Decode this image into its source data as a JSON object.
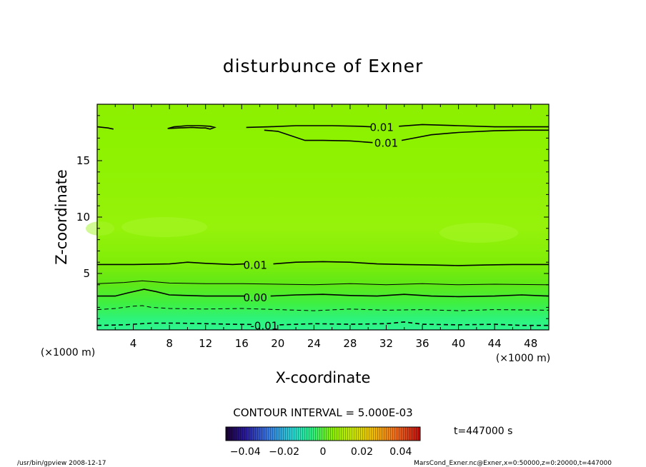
{
  "chart_data": {
    "type": "contour",
    "title": "disturbunce of Exner",
    "xlabel": "X-coordinate",
    "ylabel": "Z-coordinate",
    "x_unit": "(×1000 m)",
    "y_unit": "(×1000 m)",
    "xlim": [
      0,
      50
    ],
    "ylim": [
      0,
      20
    ],
    "xticks": [
      4,
      8,
      12,
      16,
      20,
      24,
      28,
      32,
      36,
      40,
      44,
      48
    ],
    "yticks": [
      5,
      10,
      15
    ],
    "contour_interval_text": "CONTOUR INTERVAL = 5.000E-03",
    "contour_labels": [
      {
        "text": "0.01",
        "x": 31.5,
        "y": 18.0
      },
      {
        "text": "0.01",
        "x": 32.0,
        "y": 16.6
      },
      {
        "text": "0.01",
        "x": 17.5,
        "y": 5.8
      },
      {
        "text": "0.00",
        "x": 17.5,
        "y": 2.9
      },
      {
        "text": "-0.01",
        "x": 18.5,
        "y": 0.4
      }
    ],
    "contours": [
      {
        "level": 0.01,
        "style": "solid",
        "points": [
          [
            0,
            18.0
          ],
          [
            1.2,
            17.9
          ],
          [
            1.8,
            17.8
          ]
        ]
      },
      {
        "level": 0.01,
        "style": "solid",
        "points": [
          [
            7.8,
            17.85
          ],
          [
            9,
            17.9
          ],
          [
            10.5,
            17.95
          ],
          [
            11.5,
            17.9
          ],
          [
            12,
            17.9
          ],
          [
            12.5,
            17.8
          ],
          [
            13,
            17.95
          ],
          [
            12.5,
            18.05
          ],
          [
            11.3,
            18.1
          ],
          [
            10,
            18.1
          ],
          [
            8.5,
            18.0
          ],
          [
            7.8,
            17.85
          ]
        ]
      },
      {
        "level": 0.01,
        "style": "solid",
        "points": [
          [
            16.5,
            17.95
          ],
          [
            19,
            18.0
          ],
          [
            22,
            18.1
          ],
          [
            26,
            18.1
          ],
          [
            29,
            18.05
          ],
          [
            30.3,
            18.0
          ]
        ]
      },
      {
        "level": 0.01,
        "style": "solid",
        "points": [
          [
            33.4,
            18.05
          ],
          [
            36,
            18.2
          ],
          [
            40,
            18.1
          ],
          [
            44,
            18.0
          ],
          [
            47,
            18.0
          ],
          [
            50,
            18.0
          ]
        ]
      },
      {
        "level": 0.01,
        "style": "solid",
        "points": [
          [
            18.5,
            17.7
          ],
          [
            20,
            17.6
          ],
          [
            21.5,
            17.2
          ],
          [
            23,
            16.8
          ],
          [
            25,
            16.8
          ],
          [
            28,
            16.75
          ],
          [
            30.5,
            16.6
          ]
        ]
      },
      {
        "level": 0.01,
        "style": "solid",
        "points": [
          [
            33.7,
            16.8
          ],
          [
            37,
            17.3
          ],
          [
            40,
            17.5
          ],
          [
            44,
            17.65
          ],
          [
            47,
            17.7
          ],
          [
            50,
            17.7
          ]
        ]
      },
      {
        "level": 0.01,
        "style": "solid",
        "points": [
          [
            0,
            5.8
          ],
          [
            4,
            5.8
          ],
          [
            8,
            5.85
          ],
          [
            10,
            6.0
          ],
          [
            12,
            5.9
          ],
          [
            15,
            5.8
          ],
          [
            16.3,
            5.85
          ]
        ]
      },
      {
        "level": 0.01,
        "style": "solid",
        "points": [
          [
            19.5,
            5.85
          ],
          [
            22,
            6.0
          ],
          [
            25,
            6.05
          ],
          [
            28,
            6.0
          ],
          [
            31,
            5.85
          ],
          [
            34,
            5.8
          ],
          [
            37,
            5.75
          ],
          [
            40,
            5.7
          ],
          [
            43,
            5.75
          ],
          [
            46,
            5.8
          ],
          [
            50,
            5.8
          ]
        ]
      },
      {
        "level": 0.005,
        "style": "solid",
        "points": [
          [
            0,
            4.1
          ],
          [
            3,
            4.2
          ],
          [
            5,
            4.35
          ],
          [
            8,
            4.15
          ],
          [
            12,
            4.1
          ],
          [
            16,
            4.1
          ],
          [
            20,
            4.05
          ],
          [
            24,
            4.0
          ],
          [
            28,
            4.1
          ],
          [
            32,
            4.0
          ],
          [
            36,
            4.1
          ],
          [
            40,
            4.0
          ],
          [
            44,
            4.05
          ],
          [
            50,
            4.0
          ]
        ]
      },
      {
        "level": 0.0,
        "style": "solid",
        "points": [
          [
            0,
            3.0
          ],
          [
            2,
            3.0
          ],
          [
            3.5,
            3.3
          ],
          [
            5.2,
            3.6
          ],
          [
            6.5,
            3.4
          ],
          [
            8,
            3.1
          ],
          [
            12,
            3.0
          ],
          [
            16,
            3.0
          ],
          [
            16.3,
            3.0
          ]
        ]
      },
      {
        "level": 0.0,
        "style": "solid",
        "points": [
          [
            19.2,
            3.0
          ],
          [
            22,
            3.1
          ],
          [
            25,
            3.15
          ],
          [
            28,
            3.05
          ],
          [
            31,
            3.0
          ],
          [
            34,
            3.15
          ],
          [
            37,
            3.0
          ],
          [
            40,
            2.95
          ],
          [
            44,
            3.0
          ],
          [
            47,
            3.1
          ],
          [
            50,
            3.0
          ]
        ]
      },
      {
        "level": -0.005,
        "style": "dashed",
        "points": [
          [
            0,
            1.8
          ],
          [
            2,
            1.9
          ],
          [
            4,
            2.1
          ],
          [
            5,
            2.15
          ],
          [
            6,
            2.0
          ],
          [
            8,
            1.9
          ],
          [
            12,
            1.85
          ],
          [
            16,
            1.9
          ],
          [
            20,
            1.8
          ],
          [
            24,
            1.7
          ],
          [
            28,
            1.85
          ],
          [
            32,
            1.75
          ],
          [
            36,
            1.8
          ],
          [
            40,
            1.7
          ],
          [
            44,
            1.8
          ],
          [
            50,
            1.75
          ]
        ]
      },
      {
        "level": -0.01,
        "style": "dashed",
        "points": [
          [
            0,
            0.4
          ],
          [
            3,
            0.45
          ],
          [
            6,
            0.6
          ],
          [
            9,
            0.6
          ],
          [
            12,
            0.55
          ],
          [
            15,
            0.5
          ],
          [
            17.3,
            0.48
          ]
        ]
      },
      {
        "level": -0.01,
        "style": "dashed",
        "points": [
          [
            20.2,
            0.45
          ],
          [
            24,
            0.55
          ],
          [
            28,
            0.5
          ],
          [
            32,
            0.55
          ],
          [
            34,
            0.7
          ],
          [
            36,
            0.5
          ],
          [
            40,
            0.45
          ],
          [
            44,
            0.5
          ],
          [
            47,
            0.4
          ],
          [
            50,
            0.4
          ]
        ]
      }
    ],
    "colorbar": {
      "ticks": [
        {
          "value": -0.04,
          "label": "−0.04"
        },
        {
          "value": -0.02,
          "label": "−0.02"
        },
        {
          "value": 0,
          "label": "0"
        },
        {
          "value": 0.02,
          "label": "0.02"
        },
        {
          "value": 0.04,
          "label": "0.04"
        }
      ],
      "range": [
        -0.05,
        0.05
      ]
    },
    "colors": {
      "field_top": "#8cf000",
      "field_mid": "#9ef51e",
      "field_low": "#6de80f",
      "field_bottom": "#2ef590",
      "line": "#000000"
    }
  },
  "time_label": "t=447000 s",
  "footer_left": "/usr/bin/gpview  2008-12-17",
  "footer_right": "MarsCond_Exner.nc@Exner,x=0:50000,z=0:20000,t=447000"
}
